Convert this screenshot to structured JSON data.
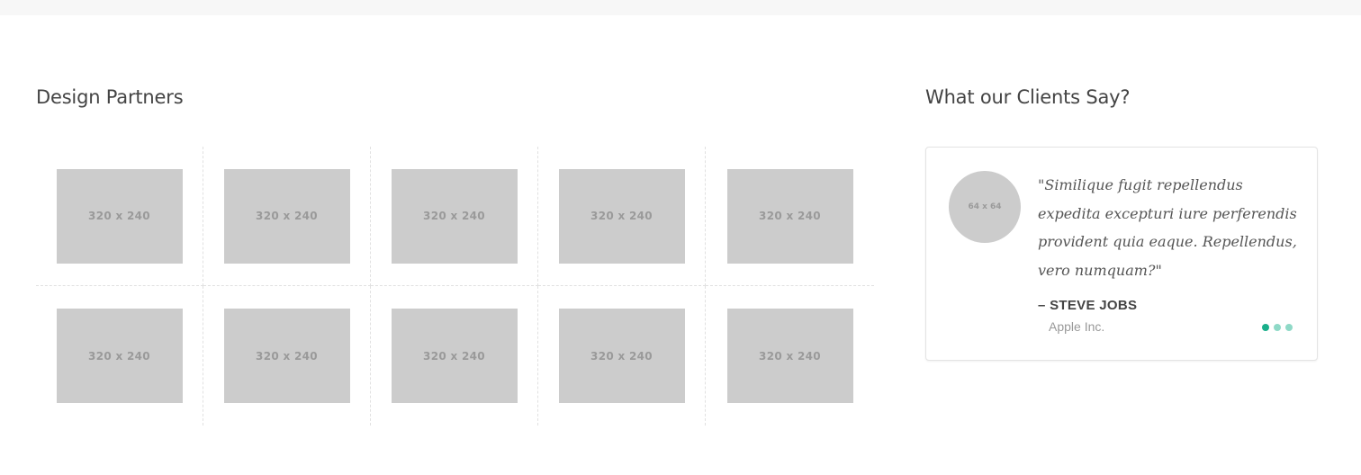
{
  "partners": {
    "title": "Design Partners",
    "logos": [
      {
        "label": "320 x 240"
      },
      {
        "label": "320 x 240"
      },
      {
        "label": "320 x 240"
      },
      {
        "label": "320 x 240"
      },
      {
        "label": "320 x 240"
      },
      {
        "label": "320 x 240"
      },
      {
        "label": "320 x 240"
      },
      {
        "label": "320 x 240"
      },
      {
        "label": "320 x 240"
      },
      {
        "label": "320 x 240"
      }
    ]
  },
  "testimonials": {
    "title": "What our Clients Say?",
    "avatar_label": "64 x 64",
    "quote": "\"Similique fugit repellendus expedita excepturi iure perferendis provident quia eaque. Repellendus, vero numquam?\"",
    "author": "– STEVE JOBS",
    "company": "Apple Inc.",
    "slides_total": 3,
    "active_slide": 1,
    "colors": {
      "dot_active": "#1aaf8b",
      "dot_inactive": "#8fd9c7"
    }
  }
}
